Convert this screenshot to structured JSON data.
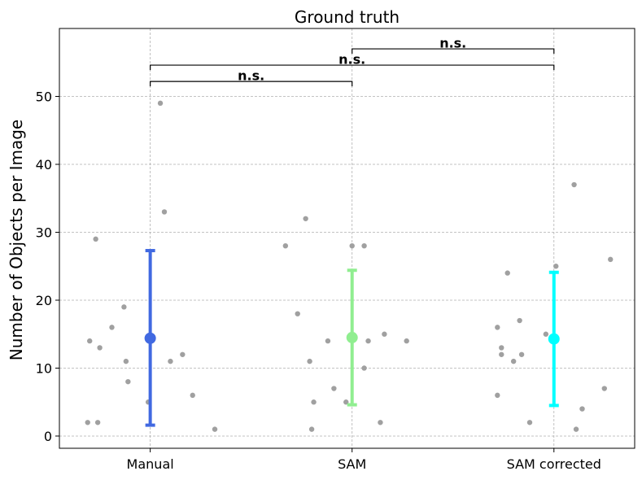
{
  "chart_data": {
    "type": "scatter",
    "title": "Ground truth",
    "xlabel": "",
    "ylabel": "Number of Objects per Image",
    "categories": [
      "Manual",
      "SAM",
      "SAM corrected"
    ],
    "ylim": [
      -1.8,
      60
    ],
    "yticks": [
      0,
      10,
      20,
      30,
      40,
      50
    ],
    "grid": true,
    "point_color": "#a0a0a0",
    "points": [
      [
        {
          "x": -0.31,
          "y": 2
        },
        {
          "x": -0.3,
          "y": 14
        },
        {
          "x": -0.27,
          "y": 29
        },
        {
          "x": -0.26,
          "y": 2
        },
        {
          "x": -0.25,
          "y": 13
        },
        {
          "x": -0.19,
          "y": 16
        },
        {
          "x": -0.13,
          "y": 19
        },
        {
          "x": -0.12,
          "y": 11
        },
        {
          "x": -0.11,
          "y": 8
        },
        {
          "x": -0.01,
          "y": 5
        },
        {
          "x": 0.05,
          "y": 49
        },
        {
          "x": 0.07,
          "y": 33
        },
        {
          "x": 0.1,
          "y": 11
        },
        {
          "x": 0.16,
          "y": 12
        },
        {
          "x": 0.21,
          "y": 6
        },
        {
          "x": 0.32,
          "y": 1
        }
      ],
      [
        {
          "x": -0.33,
          "y": 28
        },
        {
          "x": -0.27,
          "y": 18
        },
        {
          "x": -0.23,
          "y": 32
        },
        {
          "x": -0.21,
          "y": 11
        },
        {
          "x": -0.2,
          "y": 1
        },
        {
          "x": -0.19,
          "y": 5
        },
        {
          "x": -0.12,
          "y": 14
        },
        {
          "x": -0.09,
          "y": 7
        },
        {
          "x": -0.03,
          "y": 5
        },
        {
          "x": 0.0,
          "y": 28
        },
        {
          "x": 0.06,
          "y": 28
        },
        {
          "x": 0.06,
          "y": 10
        },
        {
          "x": 0.08,
          "y": 14
        },
        {
          "x": 0.14,
          "y": 2
        },
        {
          "x": 0.16,
          "y": 15
        },
        {
          "x": 0.27,
          "y": 14
        }
      ],
      [
        {
          "x": -0.28,
          "y": 16
        },
        {
          "x": -0.28,
          "y": 6
        },
        {
          "x": -0.26,
          "y": 13
        },
        {
          "x": -0.26,
          "y": 12
        },
        {
          "x": -0.23,
          "y": 24
        },
        {
          "x": -0.2,
          "y": 11
        },
        {
          "x": -0.17,
          "y": 17
        },
        {
          "x": -0.16,
          "y": 12
        },
        {
          "x": -0.12,
          "y": 2
        },
        {
          "x": -0.04,
          "y": 15
        },
        {
          "x": 0.01,
          "y": 25
        },
        {
          "x": 0.1,
          "y": 37
        },
        {
          "x": 0.11,
          "y": 1
        },
        {
          "x": 0.14,
          "y": 4
        },
        {
          "x": 0.25,
          "y": 7
        },
        {
          "x": 0.28,
          "y": 26
        }
      ]
    ],
    "summary": [
      {
        "mean": 14.4,
        "low": 1.6,
        "high": 27.3,
        "color": "#4169e1"
      },
      {
        "mean": 14.5,
        "low": 4.6,
        "high": 24.4,
        "color": "#90ee90"
      },
      {
        "mean": 14.3,
        "low": 4.5,
        "high": 24.1,
        "color": "#00ffff"
      }
    ],
    "annotations": [
      {
        "from": 0,
        "to": 1,
        "y": 52.2,
        "label": "n.s."
      },
      {
        "from": 0,
        "to": 2,
        "y": 54.6,
        "label": "n.s."
      },
      {
        "from": 1,
        "to": 2,
        "y": 57.0,
        "label": "n.s."
      }
    ]
  }
}
